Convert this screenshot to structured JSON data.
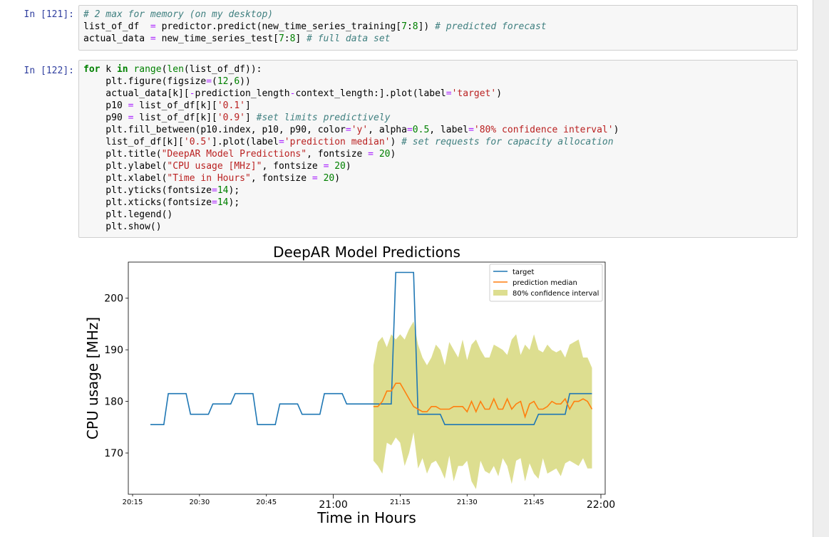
{
  "cells": [
    {
      "prompt": "In [121]:",
      "lines": [
        [
          {
            "t": "cm",
            "v": "# 2 max for memory (on my desktop)"
          }
        ],
        [
          {
            "t": "",
            "v": "list_of_df  "
          },
          {
            "t": "op",
            "v": "="
          },
          {
            "t": "",
            "v": " predictor.predict(new_time_series_training["
          },
          {
            "t": "nu",
            "v": "7"
          },
          {
            "t": "",
            "v": ":"
          },
          {
            "t": "nu",
            "v": "8"
          },
          {
            "t": "",
            "v": "]) "
          },
          {
            "t": "cm",
            "v": "# predicted forecast"
          }
        ],
        [
          {
            "t": "",
            "v": "actual_data "
          },
          {
            "t": "op",
            "v": "="
          },
          {
            "t": "",
            "v": " new_time_series_test["
          },
          {
            "t": "nu",
            "v": "7"
          },
          {
            "t": "",
            "v": ":"
          },
          {
            "t": "nu",
            "v": "8"
          },
          {
            "t": "",
            "v": "] "
          },
          {
            "t": "cm",
            "v": "# full data set"
          }
        ]
      ]
    },
    {
      "prompt": "In [122]:",
      "lines": [
        [
          {
            "t": "kw",
            "v": "for"
          },
          {
            "t": "",
            "v": " k "
          },
          {
            "t": "kw",
            "v": "in"
          },
          {
            "t": "",
            "v": " "
          },
          {
            "t": "bi",
            "v": "range"
          },
          {
            "t": "",
            "v": "("
          },
          {
            "t": "bi",
            "v": "len"
          },
          {
            "t": "",
            "v": "(list_of_df)):"
          }
        ],
        [
          {
            "t": "",
            "v": "    plt.figure(figsize"
          },
          {
            "t": "op",
            "v": "="
          },
          {
            "t": "",
            "v": "("
          },
          {
            "t": "nu",
            "v": "12"
          },
          {
            "t": "",
            "v": ","
          },
          {
            "t": "nu",
            "v": "6"
          },
          {
            "t": "",
            "v": "))"
          }
        ],
        [
          {
            "t": "",
            "v": "    actual_data[k]["
          },
          {
            "t": "op",
            "v": "-"
          },
          {
            "t": "",
            "v": "prediction_length"
          },
          {
            "t": "op",
            "v": "-"
          },
          {
            "t": "",
            "v": "context_length:].plot(label"
          },
          {
            "t": "op",
            "v": "="
          },
          {
            "t": "st",
            "v": "'target'"
          },
          {
            "t": "",
            "v": ")"
          }
        ],
        [
          {
            "t": "",
            "v": "    p10 "
          },
          {
            "t": "op",
            "v": "="
          },
          {
            "t": "",
            "v": " list_of_df[k]["
          },
          {
            "t": "st",
            "v": "'0.1'"
          },
          {
            "t": "",
            "v": "]"
          }
        ],
        [
          {
            "t": "",
            "v": "    p90 "
          },
          {
            "t": "op",
            "v": "="
          },
          {
            "t": "",
            "v": " list_of_df[k]["
          },
          {
            "t": "st",
            "v": "'0.9'"
          },
          {
            "t": "",
            "v": "] "
          },
          {
            "t": "cm",
            "v": "#set limits predictively"
          }
        ],
        [
          {
            "t": "",
            "v": "    plt.fill_between(p10.index, p10, p90, color"
          },
          {
            "t": "op",
            "v": "="
          },
          {
            "t": "st",
            "v": "'y'"
          },
          {
            "t": "",
            "v": ", alpha"
          },
          {
            "t": "op",
            "v": "="
          },
          {
            "t": "nu",
            "v": "0.5"
          },
          {
            "t": "",
            "v": ", label"
          },
          {
            "t": "op",
            "v": "="
          },
          {
            "t": "st",
            "v": "'80% confidence interval'"
          },
          {
            "t": "",
            "v": ")"
          }
        ],
        [
          {
            "t": "",
            "v": "    list_of_df[k]["
          },
          {
            "t": "st",
            "v": "'0.5'"
          },
          {
            "t": "",
            "v": "].plot(label"
          },
          {
            "t": "op",
            "v": "="
          },
          {
            "t": "st",
            "v": "'prediction median'"
          },
          {
            "t": "",
            "v": ") "
          },
          {
            "t": "cm",
            "v": "# set requests for capacity allocation"
          }
        ],
        [
          {
            "t": "",
            "v": "    plt.title("
          },
          {
            "t": "st",
            "v": "\"DeepAR Model Predictions\""
          },
          {
            "t": "",
            "v": ", fontsize "
          },
          {
            "t": "op",
            "v": "="
          },
          {
            "t": "",
            "v": " "
          },
          {
            "t": "nu",
            "v": "20"
          },
          {
            "t": "",
            "v": ")"
          }
        ],
        [
          {
            "t": "",
            "v": "    plt.ylabel("
          },
          {
            "t": "st",
            "v": "\"CPU usage [MHz]\""
          },
          {
            "t": "",
            "v": ", fontsize "
          },
          {
            "t": "op",
            "v": "="
          },
          {
            "t": "",
            "v": " "
          },
          {
            "t": "nu",
            "v": "20"
          },
          {
            "t": "",
            "v": ")"
          }
        ],
        [
          {
            "t": "",
            "v": "    plt.xlabel("
          },
          {
            "t": "st",
            "v": "\"Time in Hours\""
          },
          {
            "t": "",
            "v": ", fontsize "
          },
          {
            "t": "op",
            "v": "="
          },
          {
            "t": "",
            "v": " "
          },
          {
            "t": "nu",
            "v": "20"
          },
          {
            "t": "",
            "v": ")"
          }
        ],
        [
          {
            "t": "",
            "v": "    plt.yticks(fontsize"
          },
          {
            "t": "op",
            "v": "="
          },
          {
            "t": "nu",
            "v": "14"
          },
          {
            "t": "",
            "v": ");"
          }
        ],
        [
          {
            "t": "",
            "v": "    plt.xticks(fontsize"
          },
          {
            "t": "op",
            "v": "="
          },
          {
            "t": "nu",
            "v": "14"
          },
          {
            "t": "",
            "v": ");"
          }
        ],
        [
          {
            "t": "",
            "v": "    plt.legend()"
          }
        ],
        [
          {
            "t": "",
            "v": "    plt.show()"
          }
        ]
      ]
    }
  ],
  "chart_data": {
    "type": "line",
    "title": "DeepAR Model Predictions",
    "xlabel": "Time in Hours",
    "ylabel": "CPU usage [MHz]",
    "xlim": [
      "20:15",
      "22:00"
    ],
    "ylim": [
      162,
      207
    ],
    "yticks": [
      170,
      180,
      190,
      200
    ],
    "xticks": [
      {
        "t": "20:15",
        "v": "20:15",
        "major": false
      },
      {
        "t": "20:30",
        "v": "20:30",
        "major": false
      },
      {
        "t": "20:45",
        "v": "20:45",
        "major": false
      },
      {
        "t": "21:00",
        "v": "21:00",
        "major": true
      },
      {
        "t": "21:15",
        "v": "21:15",
        "major": false
      },
      {
        "t": "21:30",
        "v": "21:30",
        "major": false
      },
      {
        "t": "21:45",
        "v": "21:45",
        "major": false
      },
      {
        "t": "22:00",
        "v": "22:00",
        "major": true
      }
    ],
    "legend_position": "top-right",
    "series": [
      {
        "name": "target",
        "color": "#1f77b4",
        "x": [
          "20:19",
          "20:22",
          "20:23",
          "20:27",
          "20:28",
          "20:32",
          "20:33",
          "20:37",
          "20:38",
          "20:42",
          "20:43",
          "20:47",
          "20:48",
          "20:52",
          "20:53",
          "20:57",
          "20:58",
          "21:02",
          "21:03",
          "21:13",
          "21:14",
          "21:18",
          "21:19",
          "21:24",
          "21:25",
          "21:45",
          "21:46",
          "21:52",
          "21:53",
          "21:58"
        ],
        "values": [
          175.5,
          175.5,
          181.5,
          181.5,
          177.5,
          177.5,
          179.5,
          179.5,
          181.5,
          181.5,
          175.5,
          175.5,
          179.5,
          179.5,
          177.5,
          177.5,
          181.5,
          181.5,
          179.5,
          179.5,
          205,
          205,
          177.5,
          177.5,
          175.5,
          175.5,
          177.5,
          177.5,
          181.5,
          181.5
        ]
      },
      {
        "name": "prediction median",
        "color": "#ff7f0e",
        "x": [
          "21:09",
          "21:10",
          "21:11",
          "21:12",
          "21:13",
          "21:14",
          "21:15",
          "21:16",
          "21:17",
          "21:18",
          "21:19",
          "21:20",
          "21:21",
          "21:22",
          "21:23",
          "21:24",
          "21:25",
          "21:26",
          "21:27",
          "21:28",
          "21:29",
          "21:30",
          "21:31",
          "21:32",
          "21:33",
          "21:34",
          "21:35",
          "21:36",
          "21:37",
          "21:38",
          "21:39",
          "21:40",
          "21:41",
          "21:42",
          "21:43",
          "21:44",
          "21:45",
          "21:46",
          "21:47",
          "21:48",
          "21:49",
          "21:50",
          "21:51",
          "21:52",
          "21:53",
          "21:54",
          "21:55",
          "21:56",
          "21:57",
          "21:58"
        ],
        "values": [
          179,
          179,
          180,
          182,
          182,
          183.5,
          183.5,
          182,
          180.5,
          179,
          178.5,
          178,
          178,
          179,
          179,
          178.5,
          178.5,
          178.5,
          179,
          179,
          179,
          178,
          180,
          178,
          180,
          178.5,
          178.5,
          180.5,
          178.5,
          178.5,
          180.5,
          178.5,
          179.5,
          180,
          177,
          179.5,
          180,
          178.5,
          178.5,
          179,
          180,
          179.5,
          179.5,
          180.5,
          178.5,
          180,
          180,
          180.5,
          180,
          178.5
        ]
      }
    ],
    "band": {
      "name": "80% confidence interval",
      "color": "#bcbd22",
      "x": [
        "21:09",
        "21:10",
        "21:11",
        "21:12",
        "21:13",
        "21:14",
        "21:15",
        "21:16",
        "21:17",
        "21:18",
        "21:19",
        "21:20",
        "21:21",
        "21:22",
        "21:23",
        "21:24",
        "21:25",
        "21:26",
        "21:27",
        "21:28",
        "21:29",
        "21:30",
        "21:31",
        "21:32",
        "21:33",
        "21:34",
        "21:35",
        "21:36",
        "21:37",
        "21:38",
        "21:39",
        "21:40",
        "21:41",
        "21:42",
        "21:43",
        "21:44",
        "21:45",
        "21:46",
        "21:47",
        "21:48",
        "21:49",
        "21:50",
        "21:51",
        "21:52",
        "21:53",
        "21:54",
        "21:55",
        "21:56",
        "21:57",
        "21:58"
      ],
      "low": [
        168.5,
        167.5,
        166,
        172,
        171.5,
        173,
        172,
        167.5,
        170,
        174,
        167,
        169,
        166,
        168,
        168.5,
        167,
        165,
        169.5,
        164.5,
        167.5,
        167.5,
        168.5,
        164.5,
        163,
        168.5,
        166.5,
        166,
        167.5,
        165.5,
        169,
        167.5,
        164,
        168.5,
        169,
        164.5,
        168,
        166,
        165,
        169,
        166,
        166.5,
        167,
        165.5,
        168,
        168.5,
        168,
        167.5,
        169,
        167,
        167
      ],
      "high": [
        187,
        191.5,
        192.5,
        190.5,
        193,
        192,
        193,
        192,
        194,
        195.5,
        191,
        188.5,
        187,
        188.5,
        191,
        190,
        187,
        191.5,
        190,
        188.5,
        192,
        188,
        191,
        192,
        190,
        188.5,
        188.5,
        191,
        190.5,
        190,
        189,
        192,
        193,
        189,
        191,
        190,
        193,
        190,
        189.5,
        191,
        190,
        189.5,
        190,
        188.5,
        191,
        191.5,
        192,
        188.5,
        188.5,
        186.5
      ]
    }
  }
}
